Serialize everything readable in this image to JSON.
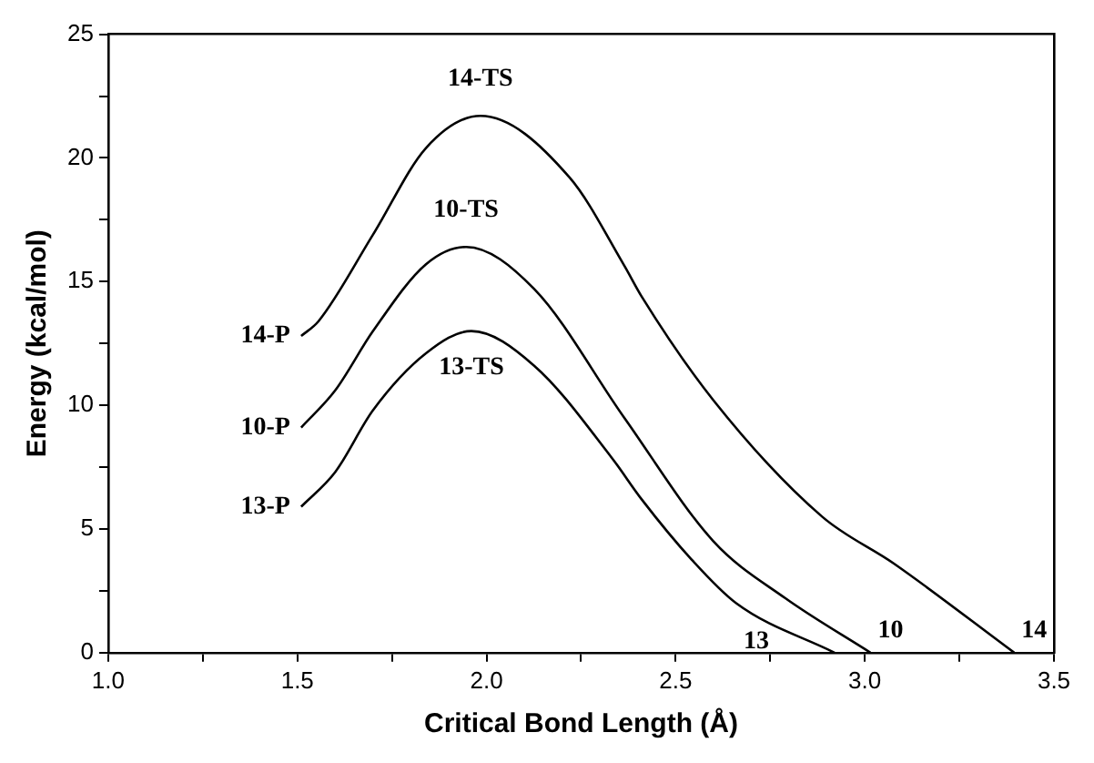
{
  "chart_data": {
    "type": "line",
    "xlabel": "Critical Bond Length (Å)",
    "ylabel": "Energy (kcal/mol)",
    "xlim": [
      1.0,
      3.5
    ],
    "xticks": [
      {
        "value": 1.0,
        "label": "1.0"
      },
      {
        "value": 1.25,
        "label": null
      },
      {
        "value": 1.5,
        "label": "1.5"
      },
      {
        "value": 1.75,
        "label": null
      },
      {
        "value": 2.0,
        "label": "2.0"
      },
      {
        "value": 2.25,
        "label": null
      },
      {
        "value": 2.5,
        "label": "2.5"
      },
      {
        "value": 2.75,
        "label": null
      },
      {
        "value": 3.0,
        "label": "3.0"
      },
      {
        "value": 3.25,
        "label": null
      },
      {
        "value": 3.5,
        "label": "3.5"
      }
    ],
    "ylim": [
      0,
      25
    ],
    "yticks": [
      0,
      {
        "value": 2.5,
        "label": null
      },
      5,
      {
        "value": 7.5,
        "label": null
      },
      10,
      {
        "value": 12.5,
        "label": null
      },
      15,
      {
        "value": 17.5,
        "label": null
      },
      20,
      {
        "value": 22.5,
        "label": null
      },
      25
    ],
    "grid": false,
    "legend": false,
    "marker": "none",
    "line_style": "solid",
    "series": [
      {
        "color": "#000000",
        "x": [
          1.51,
          1.556,
          1.7,
          1.84,
          1.984,
          2.22,
          2.364,
          2.41,
          2.6,
          2.887,
          3.077,
          3.395
        ],
        "values": [
          12.8,
          13.4,
          16.9,
          20.4,
          21.7,
          19.2,
          15.65,
          14.4,
          10.2,
          5.5,
          3.6,
          0
        ]
      },
      {
        "color": "#000000",
        "x": [
          1.51,
          1.6,
          1.7,
          1.84,
          1.946,
          2.126,
          2.364,
          2.6,
          2.79,
          3.015
        ],
        "values": [
          9.1,
          10.6,
          13.0,
          15.7,
          16.4,
          14.7,
          9.5,
          4.5,
          2.2,
          0
        ]
      },
      {
        "color": "#000000",
        "x": [
          1.51,
          1.6,
          1.7,
          1.84,
          1.96,
          2.126,
          2.33,
          2.41,
          2.54,
          2.66,
          2.92
        ],
        "values": [
          5.9,
          7.3,
          9.8,
          12.1,
          13.0,
          11.6,
          7.9,
          6.2,
          3.8,
          2.0,
          0
        ]
      }
    ],
    "annotations": [
      {
        "text": "14-TS",
        "x": 1.984,
        "y": 21.7
      },
      {
        "text": "10-TS",
        "x": 1.946,
        "y": 16.4
      },
      {
        "text": "13-TS",
        "x": 1.96,
        "y": 13.0
      },
      {
        "text": "14-P",
        "x": 1.51,
        "y": 12.8
      },
      {
        "text": "10-P",
        "x": 1.51,
        "y": 9.1
      },
      {
        "text": "13-P",
        "x": 1.51,
        "y": 5.9
      },
      {
        "text": "13",
        "x": 2.92,
        "y": 0
      },
      {
        "text": "10",
        "x": 3.015,
        "y": 0
      },
      {
        "text": "14",
        "x": 3.395,
        "y": 0
      }
    ]
  }
}
